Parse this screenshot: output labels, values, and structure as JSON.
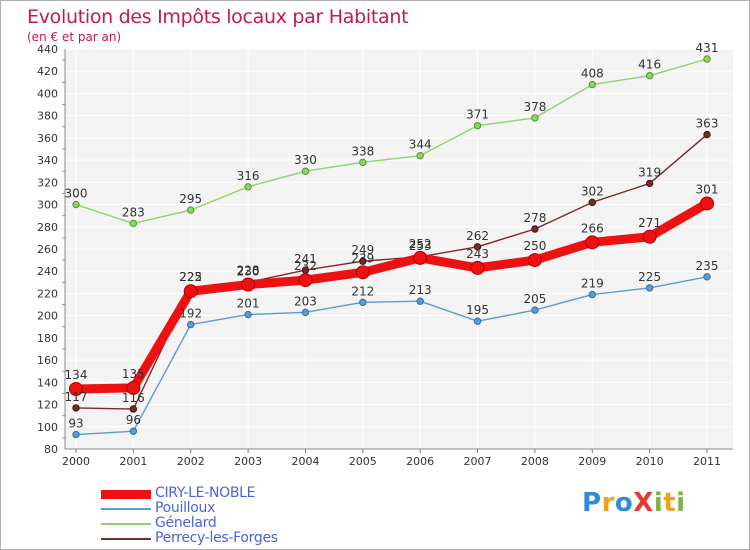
{
  "title": "Evolution des Impôts locaux par Habitant",
  "subtitle": "(en € et par an)",
  "logo": {
    "text": "ProXiti",
    "letters": [
      {
        "ch": "P",
        "color": "#2e8bd8"
      },
      {
        "ch": "r",
        "color": "#f0a020"
      },
      {
        "ch": "o",
        "color": "#2e8bd8"
      },
      {
        "ch": "X",
        "color": "#e53935"
      },
      {
        "ch": "i",
        "color": "#7cb342"
      },
      {
        "ch": "t",
        "color": "#f0a020"
      },
      {
        "ch": "i",
        "color": "#7cb342"
      }
    ]
  },
  "chart_data": {
    "type": "line",
    "title": "Evolution des Impôts locaux par Habitant",
    "subtitle": "(en € et par an)",
    "x": [
      "2000",
      "2001",
      "2002",
      "2003",
      "2004",
      "2005",
      "2006",
      "2007",
      "2008",
      "2009",
      "2010",
      "2011"
    ],
    "ylim": [
      80,
      440
    ],
    "yticks": [
      80,
      100,
      120,
      140,
      160,
      180,
      200,
      220,
      240,
      260,
      280,
      300,
      320,
      340,
      360,
      380,
      400,
      420,
      440
    ],
    "grid": true,
    "legend_position": "bottom-left",
    "series": [
      {
        "name": "CIRY-LE-NOBLE",
        "color": "#ee1111",
        "values": [
          134,
          135,
          222,
          228,
          232,
          239,
          252,
          243,
          250,
          266,
          271,
          301
        ]
      },
      {
        "name": "Pouilloux",
        "color": "#5b9bd5",
        "values": [
          93,
          96,
          192,
          201,
          203,
          212,
          213,
          195,
          205,
          219,
          225,
          235
        ]
      },
      {
        "name": "Génelard",
        "color": "#8fd16a",
        "values": [
          300,
          283,
          295,
          316,
          330,
          338,
          344,
          371,
          378,
          408,
          416,
          431
        ]
      },
      {
        "name": "Perrecy-les-Forges",
        "color": "#7a2a2a",
        "values": [
          117,
          116,
          225,
          230,
          241,
          249,
          253,
          262,
          278,
          302,
          319,
          363
        ]
      }
    ]
  }
}
